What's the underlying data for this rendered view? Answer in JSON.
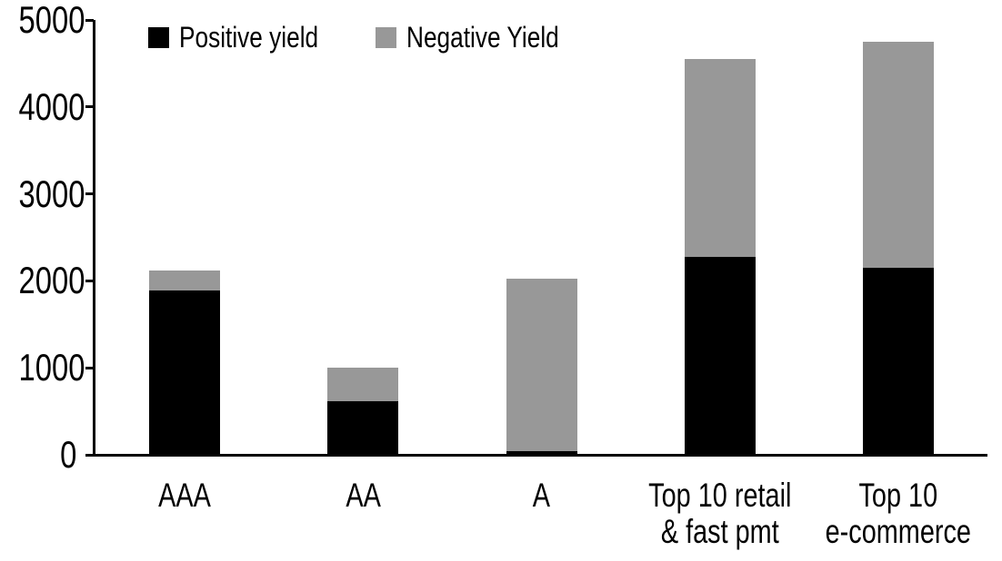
{
  "chart_data": {
    "type": "bar",
    "stacked": true,
    "title": "",
    "categories": [
      "AAA",
      "AA",
      "A",
      "Top 10 retail & fast pmt",
      "Top 10 e-commerce"
    ],
    "category_label_lines": [
      [
        "AAA"
      ],
      [
        "AA"
      ],
      [
        "A"
      ],
      [
        "Top 10 retail",
        "& fast pmt"
      ],
      [
        "Top 10",
        "e-commerce"
      ]
    ],
    "series": [
      {
        "name": "Positive yield",
        "color": "#000000",
        "values": [
          1890,
          620,
          40,
          2280,
          2150
        ]
      },
      {
        "name": "Negative Yield",
        "color": "#989898",
        "values": [
          230,
          380,
          1990,
          2270,
          2600
        ]
      }
    ],
    "ylim": [
      0,
      5000
    ],
    "yticks": [
      0,
      1000,
      2000,
      3000,
      4000,
      5000
    ],
    "xlabel": "",
    "ylabel": "",
    "legend_position": "top",
    "grid": false
  },
  "colors": {
    "axis": "#000000",
    "background": "#ffffff",
    "positive_series": "#000000",
    "negative_series": "#989898"
  }
}
